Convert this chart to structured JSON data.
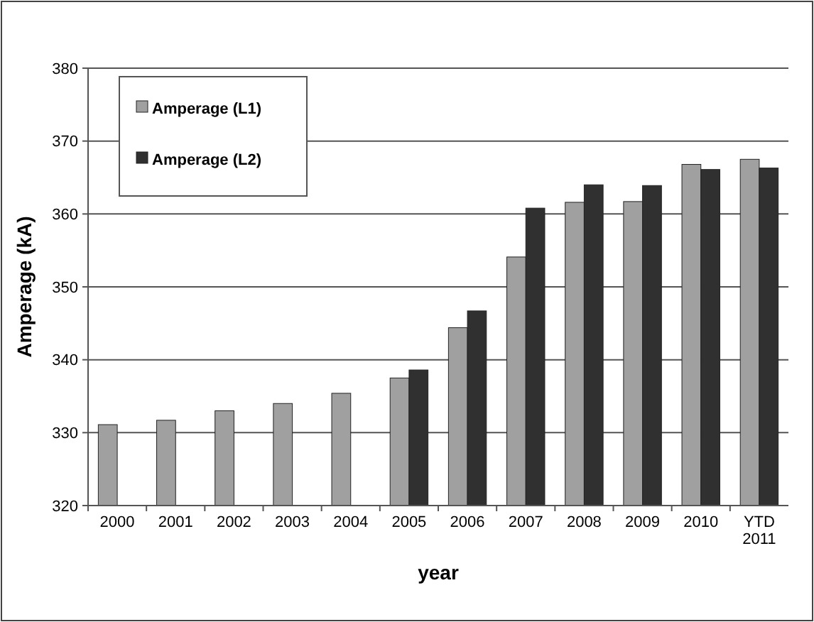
{
  "chart_data": {
    "type": "bar",
    "xlabel": "year",
    "ylabel": "Amperage (kA)",
    "categories": [
      "2000",
      "2001",
      "2002",
      "2003",
      "2004",
      "2005",
      "2006",
      "2007",
      "2008",
      "2009",
      "2010",
      "YTD 2011"
    ],
    "series": [
      {
        "name": "Amperage (L1)",
        "color": "#a0a0a0",
        "values": [
          331.1,
          331.7,
          333,
          334,
          335.4,
          337.5,
          344.4,
          354.1,
          361.6,
          361.7,
          366.8,
          367.5
        ]
      },
      {
        "name": "Amperage (L2)",
        "color": "#303030",
        "values": [
          null,
          null,
          null,
          null,
          null,
          338.6,
          346.7,
          360.8,
          364,
          363.9,
          366.1,
          366.3
        ]
      }
    ],
    "ylim": [
      320,
      380
    ],
    "yticks": [
      320,
      330,
      340,
      350,
      360,
      370,
      380
    ],
    "grid": "y",
    "legend": "top left"
  }
}
